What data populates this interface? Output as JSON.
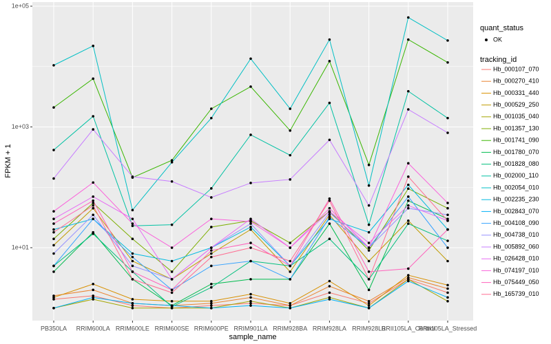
{
  "chart_data": {
    "type": "line",
    "x_label": "sample_name",
    "y_label": "FPKM + 1",
    "log_y": true,
    "grid": true,
    "ylim": [
      0.62,
      117000
    ],
    "yticks": [
      {
        "value": 10,
        "label": "1e+01"
      },
      {
        "value": 1000,
        "label": "1e+03"
      },
      {
        "value": 100000,
        "label": "1e+05"
      }
    ],
    "y_minor_gridlines": [
      100,
      10000
    ],
    "categories": [
      "PB350LA",
      "RRIM600LA",
      "RRIM600LE",
      "RRIM600SE",
      "RRIM600PE",
      "RRIM901LA",
      "RRIM928BA",
      "RRIM928LA",
      "RRIM928LB",
      "RRII105LA_Control",
      "RRII105LA_Stressed"
    ],
    "point_legend_title": "quant_status",
    "point_legend_label": "OK",
    "point_color": "#000000",
    "legend_title": "tracking_id",
    "series": [
      {
        "name": "Hb_000107_070",
        "color": "#F8766D",
        "values": [
          1.4,
          1.6,
          1.1,
          1.0,
          1.1,
          1.2,
          1.1,
          1.8,
          1.2,
          3.0,
          1.8
        ]
      },
      {
        "name": "Hb_000270_410",
        "color": "#EA8331",
        "values": [
          1.6,
          2.0,
          1.2,
          1.1,
          1.2,
          1.5,
          1.1,
          2.3,
          1.3,
          3.2,
          2.1
        ]
      },
      {
        "name": "Hb_000331_440",
        "color": "#D89000",
        "values": [
          1.5,
          2.5,
          1.4,
          1.3,
          1.3,
          1.7,
          1.2,
          2.8,
          1.1,
          3.5,
          2.4
        ]
      },
      {
        "name": "Hb_000529_250",
        "color": "#C09B00",
        "values": [
          11,
          45,
          6,
          3,
          8,
          20,
          4,
          35,
          6,
          28,
          6
        ]
      },
      {
        "name": "Hb_001035_040",
        "color": "#A3A500",
        "values": [
          1.0,
          1.4,
          1.0,
          1.0,
          1.0,
          1.3,
          1.0,
          1.5,
          1.0,
          3.0,
          1.3
        ]
      },
      {
        "name": "Hb_001357_130",
        "color": "#7CAE00",
        "values": [
          14,
          55,
          14,
          4,
          22,
          28,
          12,
          40,
          9,
          95,
          45
        ]
      },
      {
        "name": "Hb_001741_090",
        "color": "#39B600",
        "values": [
          2100,
          6300,
          145,
          280,
          2000,
          4650,
          870,
          12300,
          235,
          28000,
          11700
        ]
      },
      {
        "name": "Hb_001780_070",
        "color": "#00BB4E",
        "values": [
          4,
          18,
          3,
          1.1,
          2.5,
          3,
          3,
          25,
          2,
          60,
          30
        ]
      },
      {
        "name": "Hb_001828_080",
        "color": "#00BF7D",
        "values": [
          5,
          17,
          4,
          1.05,
          2.2,
          6,
          5,
          14,
          3,
          25,
          13
        ]
      },
      {
        "name": "Hb_002000_110",
        "color": "#00C1A3",
        "values": [
          415,
          1500,
          23,
          24,
          96,
          740,
          340,
          2500,
          24,
          3900,
          1400
        ]
      },
      {
        "name": "Hb_002054_010",
        "color": "#00BFC4",
        "values": [
          10500,
          22000,
          42,
          260,
          1400,
          13500,
          2000,
          28000,
          107,
          65000,
          27000
        ]
      },
      {
        "name": "Hb_002235_230",
        "color": "#00BAE0",
        "values": [
          20,
          30,
          8,
          6,
          10,
          22,
          5,
          30,
          18,
          110,
          20
        ]
      },
      {
        "name": "Hb_002843_070",
        "color": "#00B0F6",
        "values": [
          1.0,
          1.5,
          1.2,
          1.1,
          1.0,
          1.1,
          1.0,
          1.4,
          1.0,
          2.8,
          1.5
        ]
      },
      {
        "name": "Hb_004108_090",
        "color": "#35A2FF",
        "values": [
          5,
          30,
          7,
          2,
          5,
          6,
          3,
          32,
          10,
          70,
          10
        ]
      },
      {
        "name": "Hb_004738_010",
        "color": "#9590FF",
        "values": [
          8,
          35,
          5,
          3,
          10,
          25,
          5,
          38,
          10,
          45,
          35
        ]
      },
      {
        "name": "Hb_005892_060",
        "color": "#C77CFF",
        "values": [
          140,
          910,
          150,
          125,
          68,
          118,
          135,
          610,
          50,
          1950,
          800
        ]
      },
      {
        "name": "Hb_026428_010",
        "color": "#E76BF3",
        "values": [
          30,
          70,
          30,
          3,
          10,
          30,
          10,
          40,
          12,
          50,
          28
        ]
      },
      {
        "name": "Hb_074197_010",
        "color": "#FA62DB",
        "values": [
          40,
          120,
          25,
          10,
          30,
          27,
          10,
          45,
          10,
          250,
          55
        ]
      },
      {
        "name": "Hb_075449_050",
        "color": "#FF62BC",
        "values": [
          25,
          60,
          4,
          2,
          9,
          12,
          5,
          65,
          4,
          4.5,
          20
        ]
      },
      {
        "name": "Hb_165739_010",
        "color": "#FF6C91",
        "values": [
          18,
          50,
          3,
          1.8,
          7,
          10,
          6,
          60,
          3,
          150,
          28
        ]
      }
    ]
  }
}
